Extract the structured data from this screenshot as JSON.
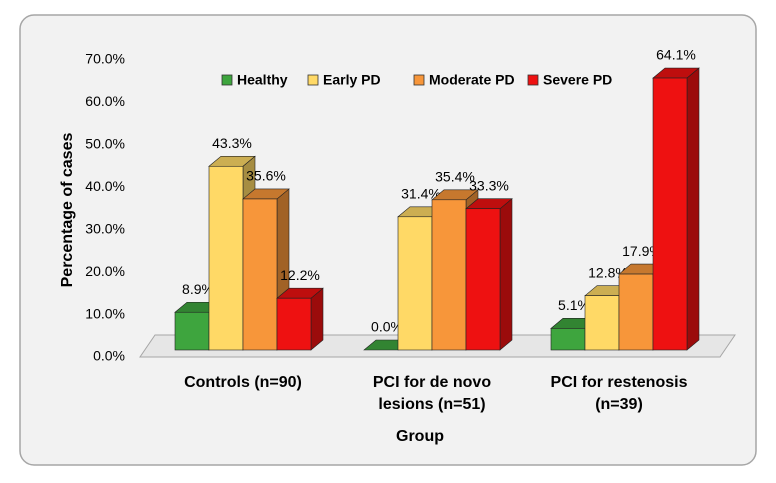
{
  "chart_data": {
    "type": "bar3d",
    "x_label": "Group",
    "y_label": "Percentage of cases",
    "categories": [
      "Controls (n=90)",
      "PCI for de novo lesions (n=51)",
      "PCI for restenosis (n=39)"
    ],
    "series": [
      {
        "name": "Healthy",
        "color": "#3ea53e",
        "values": [
          8.9,
          0.0,
          5.1
        ],
        "value_labels": [
          "8.9%",
          "0.0%",
          "5.1%"
        ]
      },
      {
        "name": "Early PD",
        "color": "#ffd966",
        "values": [
          43.3,
          31.4,
          12.8
        ],
        "value_labels": [
          "43.3%",
          "31.4%",
          "12.8%"
        ]
      },
      {
        "name": "Moderate PD",
        "color": "#f7963a",
        "values": [
          35.6,
          35.4,
          17.9
        ],
        "value_labels": [
          "35.6%",
          "35.4%",
          "17.9%"
        ]
      },
      {
        "name": "Severe PD",
        "color": "#ee1111",
        "values": [
          12.2,
          33.3,
          64.1
        ],
        "value_labels": [
          "12.2%",
          "33.3%",
          "64.1%"
        ]
      }
    ],
    "ylim": [
      0,
      70
    ],
    "yticks": [
      {
        "value": 0,
        "label": "0.0%"
      },
      {
        "value": 10,
        "label": "10.0%"
      },
      {
        "value": 20,
        "label": "20.0%"
      },
      {
        "value": 30,
        "label": "30.0%"
      },
      {
        "value": 40,
        "label": "40.0%"
      },
      {
        "value": 50,
        "label": "50.0%"
      },
      {
        "value": 60,
        "label": "60.0%"
      },
      {
        "value": 70,
        "label": "70.0%"
      }
    ],
    "legend": "top"
  }
}
